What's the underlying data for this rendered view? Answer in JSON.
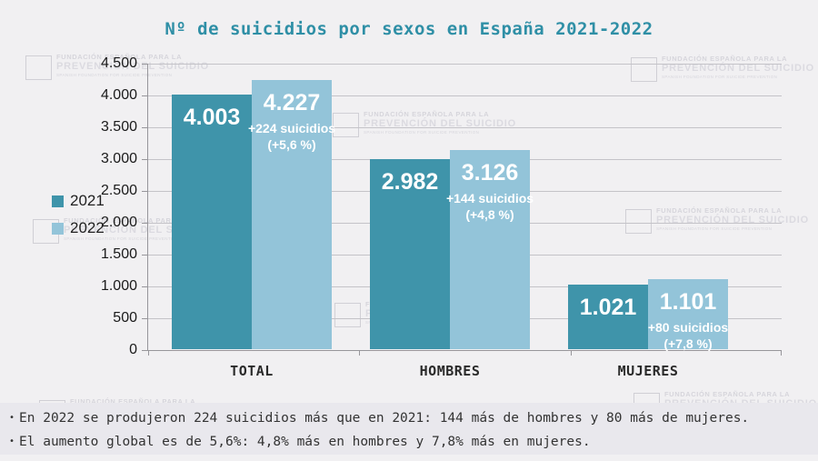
{
  "title": "Nº de suicidios por sexos en España 2021-2022",
  "colors": {
    "series_2021": "#3F94AA",
    "series_2022": "#93C4D9",
    "title_text": "#2F8FA6",
    "background": "#F1F0F2",
    "footer_band": "#E9E8ED",
    "gridline": "#C4C3C8",
    "bar_label_text": "#FFFFFF"
  },
  "legend": {
    "items": [
      {
        "label": "2021",
        "color": "#3F94AA"
      },
      {
        "label": "2022",
        "color": "#93C4D9"
      }
    ]
  },
  "chart_data": {
    "type": "bar",
    "title": "Nº de suicidios por sexos en España 2021-2022",
    "categories": [
      "TOTAL",
      "HOMBRES",
      "MUJERES"
    ],
    "series": [
      {
        "name": "2021",
        "values": [
          4003,
          2982,
          1021
        ],
        "labels": [
          "4.003",
          "2.982",
          "1.021"
        ]
      },
      {
        "name": "2022",
        "values": [
          4227,
          3126,
          1101
        ],
        "labels": [
          "4.227",
          "3.126",
          "1.101"
        ]
      }
    ],
    "annotations": [
      {
        "category": "TOTAL",
        "line1": "+224 suicidios",
        "line2": "(+5,6 %)"
      },
      {
        "category": "HOMBRES",
        "line1": "+144 suicidios",
        "line2": "(+4,8 %)"
      },
      {
        "category": "MUJERES",
        "line1": "+80 suicidios",
        "line2": "(+7,8 %)"
      }
    ],
    "xlabel": "",
    "ylabel": "",
    "ylim": [
      0,
      4500
    ],
    "ytick_interval": 500,
    "ytick_labels": [
      "0",
      "500",
      "1.000",
      "1.500",
      "2.000",
      "2.500",
      "3.000",
      "3.500",
      "4.000",
      "4.500"
    ],
    "grid": true,
    "legend_position": "left"
  },
  "footer": {
    "bullet_char": "•",
    "bullet1": "En 2022 se produjeron 224 suicidios más que en 2021: 144 más de hombres y 80 más de mujeres.",
    "bullet2": "El aumento global es de 5,6%: 4,8% más en hombres y 7,8% más en mujeres."
  },
  "watermark": {
    "line1": "FUNDACIÓN ESPAÑOLA PARA LA",
    "line2": "PREVENCIÓN DEL SUICIDIO",
    "line3": "SPANISH FOUNDATION FOR SUICIDE PREVENTION"
  }
}
